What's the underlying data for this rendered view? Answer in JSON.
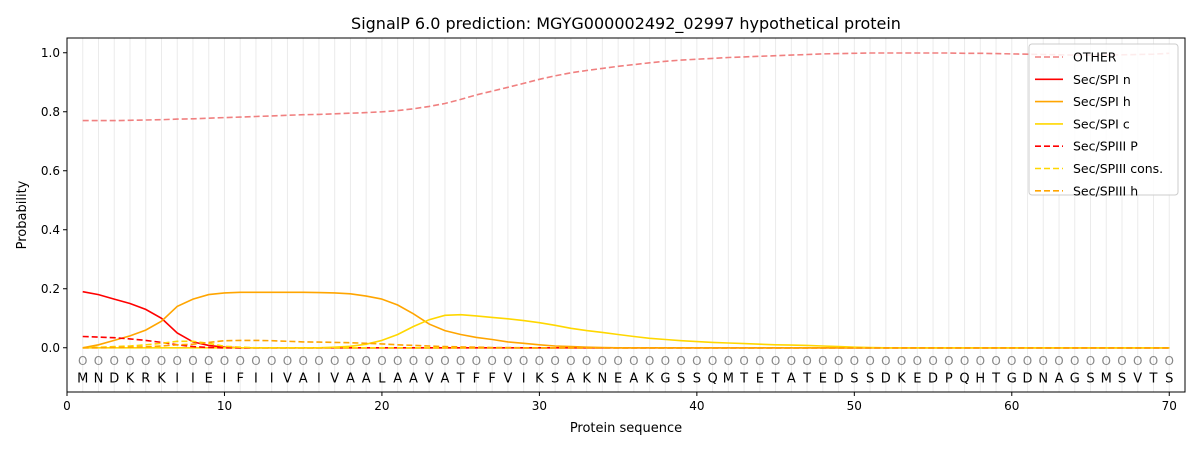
{
  "chart_data": {
    "type": "line",
    "title": "SignalP 6.0 prediction: MGYG000002492_02997 hypothetical protein",
    "xlabel": "Protein sequence",
    "ylabel": "Probability",
    "xlim": [
      0,
      71
    ],
    "ylim": [
      -0.15,
      1.05
    ],
    "xticks": [
      0,
      10,
      20,
      30,
      40,
      50,
      60,
      70
    ],
    "yticks": [
      0.0,
      0.2,
      0.4,
      0.6,
      0.8,
      1.0
    ],
    "ytick_labels": [
      "0.0",
      "0.2",
      "0.4",
      "0.6",
      "0.8",
      "1.0"
    ],
    "grid": "vertical lines at each residue",
    "legend_position": "top-right",
    "sequence": [
      "M",
      "N",
      "D",
      "K",
      "R",
      "K",
      "I",
      "I",
      "E",
      "I",
      "F",
      "I",
      "I",
      "V",
      "A",
      "I",
      "V",
      "A",
      "A",
      "L",
      "A",
      "A",
      "V",
      "A",
      "T",
      "F",
      "F",
      "V",
      "I",
      "K",
      "S",
      "A",
      "K",
      "N",
      "E",
      "A",
      "K",
      "G",
      "S",
      "S",
      "Q",
      "M",
      "T",
      "E",
      "T",
      "A",
      "T",
      "E",
      "D",
      "S",
      "S",
      "D",
      "K",
      "E",
      "D",
      "P",
      "Q",
      "H",
      "T",
      "G",
      "D",
      "N",
      "A",
      "G",
      "S",
      "M",
      "S",
      "V",
      "T",
      "S"
    ],
    "region_marker": "O",
    "series": [
      {
        "name": "OTHER",
        "color": "#f08080",
        "dash": true,
        "values": [
          0.77,
          0.77,
          0.77,
          0.771,
          0.772,
          0.773,
          0.775,
          0.776,
          0.778,
          0.78,
          0.782,
          0.784,
          0.786,
          0.788,
          0.79,
          0.791,
          0.793,
          0.795,
          0.797,
          0.8,
          0.804,
          0.81,
          0.818,
          0.828,
          0.842,
          0.857,
          0.87,
          0.883,
          0.896,
          0.91,
          0.922,
          0.932,
          0.94,
          0.947,
          0.954,
          0.96,
          0.966,
          0.971,
          0.975,
          0.978,
          0.981,
          0.984,
          0.986,
          0.988,
          0.99,
          0.992,
          0.994,
          0.996,
          0.997,
          0.998,
          0.999,
          0.999,
          0.999,
          0.999,
          0.999,
          0.999,
          0.998,
          0.998,
          0.997,
          0.996,
          0.995,
          0.994,
          0.993,
          0.992,
          0.992,
          0.992,
          0.993,
          0.994,
          0.995,
          0.998
        ]
      },
      {
        "name": "Sec/SPI n",
        "color": "#ff0000",
        "dash": false,
        "values": [
          0.19,
          0.18,
          0.165,
          0.15,
          0.13,
          0.1,
          0.05,
          0.02,
          0.008,
          0.002,
          0,
          0,
          0,
          0,
          0,
          0,
          0,
          0,
          0,
          0,
          0,
          0,
          0,
          0,
          0,
          0,
          0,
          0,
          0,
          0,
          0,
          0,
          0,
          0,
          0,
          0,
          0,
          0,
          0,
          0,
          0,
          0,
          0,
          0,
          0,
          0,
          0,
          0,
          0,
          0,
          0,
          0,
          0,
          0,
          0,
          0,
          0,
          0,
          0,
          0,
          0,
          0,
          0,
          0,
          0,
          0,
          0,
          0,
          0,
          0
        ]
      },
      {
        "name": "Sec/SPI h",
        "color": "#ffa500",
        "dash": false,
        "values": [
          0,
          0.01,
          0.025,
          0.04,
          0.06,
          0.09,
          0.14,
          0.165,
          0.18,
          0.186,
          0.188,
          0.188,
          0.188,
          0.188,
          0.188,
          0.187,
          0.186,
          0.183,
          0.175,
          0.165,
          0.145,
          0.115,
          0.08,
          0.058,
          0.045,
          0.035,
          0.028,
          0.02,
          0.015,
          0.01,
          0.006,
          0.004,
          0.002,
          0.001,
          0,
          0,
          0,
          0,
          0,
          0,
          0,
          0,
          0,
          0,
          0,
          0,
          0,
          0,
          0,
          0,
          0,
          0,
          0,
          0,
          0,
          0,
          0,
          0,
          0,
          0,
          0,
          0,
          0,
          0,
          0,
          0,
          0,
          0,
          0,
          0
        ]
      },
      {
        "name": "Sec/SPI c",
        "color": "#ffd700",
        "dash": false,
        "values": [
          0,
          0,
          0,
          0,
          0,
          0,
          0,
          0,
          0,
          0,
          0,
          0,
          0,
          0,
          0,
          0,
          0.002,
          0.005,
          0.012,
          0.025,
          0.045,
          0.072,
          0.095,
          0.11,
          0.112,
          0.108,
          0.103,
          0.098,
          0.092,
          0.085,
          0.076,
          0.066,
          0.058,
          0.052,
          0.045,
          0.038,
          0.032,
          0.028,
          0.024,
          0.021,
          0.018,
          0.016,
          0.014,
          0.012,
          0.01,
          0.009,
          0.008,
          0.006,
          0.004,
          0.002,
          0.001,
          0,
          0,
          0,
          0,
          0,
          0,
          0,
          0,
          0,
          0,
          0,
          0,
          0,
          0,
          0,
          0,
          0,
          0,
          0
        ]
      },
      {
        "name": "Sec/SPIII P",
        "color": "#ff0000",
        "dash": true,
        "values": [
          0.038,
          0.036,
          0.034,
          0.03,
          0.025,
          0.018,
          0.01,
          0.004,
          0.001,
          0,
          0,
          0,
          0,
          0,
          0,
          0,
          0,
          0,
          0,
          0,
          0,
          0,
          0,
          0,
          0,
          0,
          0,
          0,
          0,
          0,
          0,
          0,
          0,
          0,
          0,
          0,
          0,
          0,
          0,
          0,
          0,
          0,
          0,
          0,
          0,
          0,
          0,
          0,
          0,
          0,
          0,
          0,
          0,
          0,
          0,
          0,
          0,
          0,
          0,
          0,
          0,
          0,
          0,
          0,
          0,
          0,
          0,
          0,
          0,
          0
        ]
      },
      {
        "name": "Sec/SPIII cons.",
        "color": "#ffd700",
        "dash": true,
        "values": [
          0,
          0.002,
          0.004,
          0.006,
          0.01,
          0.015,
          0.022,
          0.022,
          0.015,
          0.005,
          0.002,
          0,
          0,
          0,
          0,
          0,
          0,
          0,
          0,
          0,
          0,
          0,
          0,
          0,
          0,
          0,
          0,
          0,
          0,
          0,
          0,
          0,
          0,
          0,
          0,
          0,
          0,
          0,
          0,
          0,
          0,
          0,
          0,
          0,
          0,
          0,
          0,
          0,
          0,
          0,
          0,
          0,
          0,
          0,
          0,
          0,
          0,
          0,
          0,
          0,
          0,
          0,
          0,
          0,
          0,
          0,
          0,
          0,
          0,
          0
        ]
      },
      {
        "name": "Sec/SPIII h",
        "color": "#ffa500",
        "dash": true,
        "values": [
          0,
          0,
          0.001,
          0.002,
          0.003,
          0.006,
          0.01,
          0.012,
          0.018,
          0.024,
          0.025,
          0.025,
          0.024,
          0.022,
          0.02,
          0.019,
          0.018,
          0.017,
          0.015,
          0.013,
          0.01,
          0.008,
          0.006,
          0.004,
          0.003,
          0.002,
          0.001,
          0.001,
          0,
          0,
          0,
          0,
          0,
          0,
          0,
          0,
          0,
          0,
          0,
          0,
          0,
          0,
          0,
          0,
          0,
          0,
          0,
          0,
          0,
          0,
          0,
          0,
          0,
          0,
          0,
          0,
          0,
          0,
          0,
          0,
          0,
          0,
          0,
          0,
          0,
          0,
          0,
          0,
          0,
          0
        ]
      }
    ]
  }
}
